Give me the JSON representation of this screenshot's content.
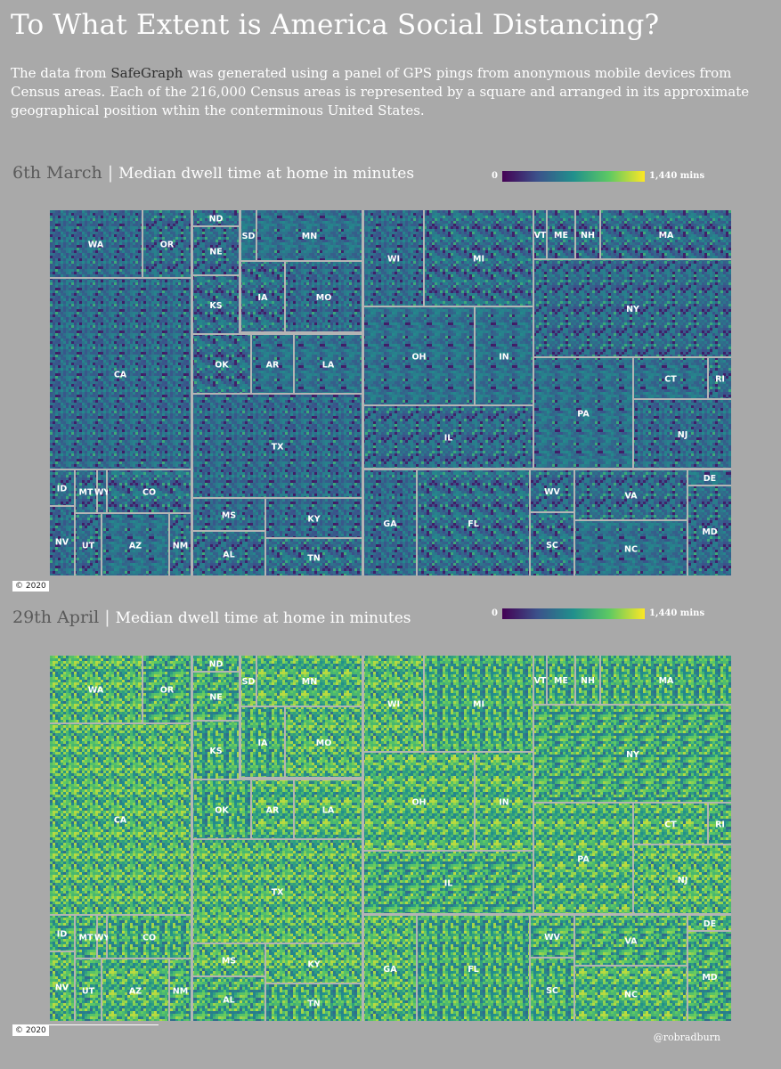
{
  "title": "To What Extent is America Social Distancing?",
  "intro": {
    "before": "The data from ",
    "brand": "SafeGraph",
    "after": " was generated using a panel of GPS pings from anonymous mobile devices from Census areas. Each of the 216,000 Census areas is represented by a square and arranged in its approximate geographical position wthin the conterminous United States."
  },
  "colors": {
    "background": "#a9a9a9",
    "viridis": [
      "#440154",
      "#3b528b",
      "#21908c",
      "#5dc963",
      "#fde725"
    ]
  },
  "credit": "@robradburn",
  "chart_data": [
    {
      "type": "heatmap",
      "date": "6th March",
      "metric": "Median dwell time at home in minutes",
      "legend": {
        "min_label": "0",
        "max_label": "1,440 mins",
        "range": [
          0,
          1440
        ]
      },
      "copyright": "© 2020",
      "states": [
        "WA",
        "OR",
        "ND",
        "SD",
        "MN",
        "WI",
        "MI",
        "VT",
        "ME",
        "NH",
        "MA",
        "NE",
        "IA",
        "MO",
        "NY",
        "KS",
        "OK",
        "AR",
        "LA",
        "OH",
        "IN",
        "CT",
        "RI",
        "CA",
        "PA",
        "NJ",
        "TX",
        "IL",
        "ID",
        "MT",
        "WY",
        "CO",
        "WV",
        "VA",
        "DE",
        "MS",
        "KY",
        "GA",
        "FL",
        "MD",
        "NV",
        "UT",
        "AZ",
        "NM",
        "SC",
        "NC",
        "AL",
        "TN"
      ]
    },
    {
      "type": "heatmap",
      "date": "29th April",
      "metric": "Median dwell time at home in minutes",
      "legend": {
        "min_label": "0",
        "max_label": "1,440  mins",
        "range": [
          0,
          1440
        ]
      },
      "copyright": "© 2020",
      "states": [
        "WA",
        "OR",
        "ND",
        "SD",
        "MN",
        "WI",
        "MI",
        "VT",
        "ME",
        "NH",
        "MA",
        "NE",
        "IA",
        "MO",
        "NY",
        "KS",
        "OK",
        "AR",
        "LA",
        "OH",
        "IN",
        "CT",
        "RI",
        "CA",
        "PA",
        "NJ",
        "TX",
        "IL",
        "ID",
        "MT",
        "WY",
        "CO",
        "WV",
        "VA",
        "DE",
        "MS",
        "KY",
        "GA",
        "FL",
        "MD",
        "NV",
        "UT",
        "AZ",
        "NM",
        "SC",
        "NC",
        "AL",
        "TN"
      ]
    }
  ]
}
